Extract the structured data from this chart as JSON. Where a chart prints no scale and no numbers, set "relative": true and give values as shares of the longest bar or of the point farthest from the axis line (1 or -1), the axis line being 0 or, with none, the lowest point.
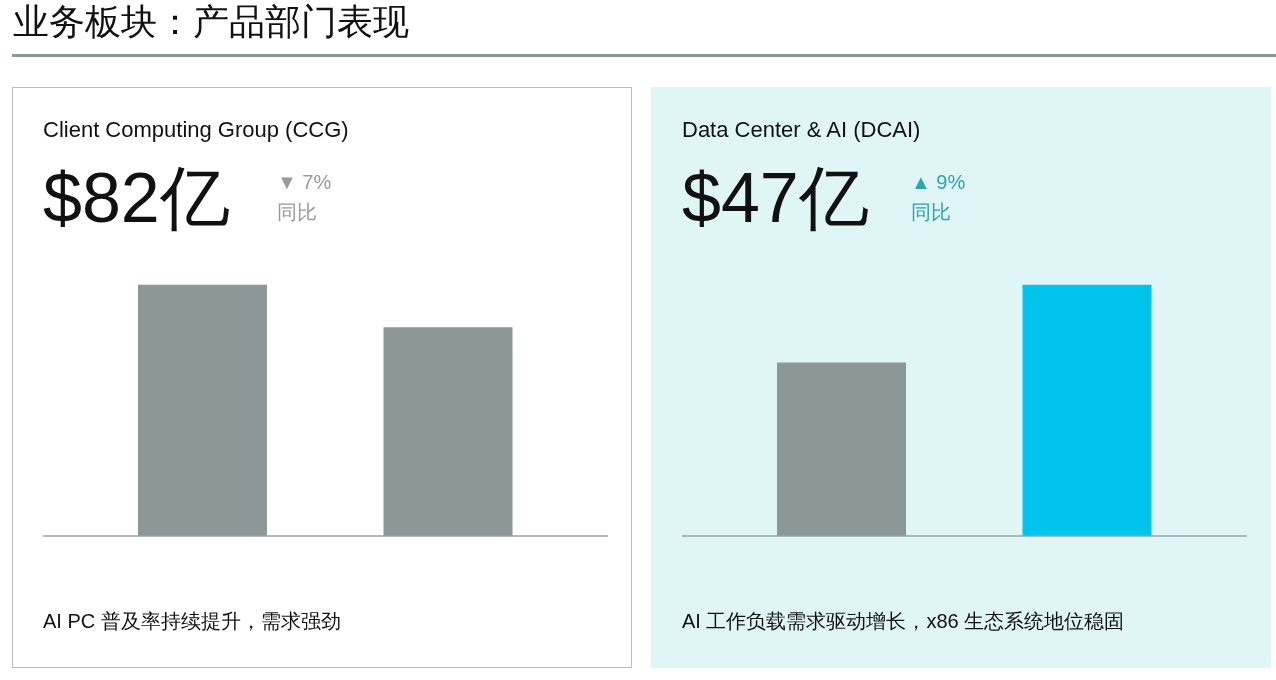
{
  "chart_data": [
    {
      "type": "other",
      "title": "业务板块：产品部门表现"
    },
    {
      "type": "bar",
      "title": "Client Computing Group (CCG)",
      "annotations": [
        "$82亿",
        "▼ 7%",
        "同比",
        "AI PC 普及率持续提升，需求强劲"
      ],
      "categories": [
        null,
        null
      ],
      "values": [
        1,
        0.83
      ],
      "colors": [
        "#8c9797",
        "#8c9797"
      ],
      "relative": true
    },
    {
      "type": "bar",
      "title": "Data Center & AI (DCAI)",
      "annotations": [
        "$47亿",
        "▲ 9%",
        "同比",
        "AI 工作负载需求驱动增长，x86 生态系统地位稳固"
      ],
      "categories": [
        null,
        null
      ],
      "values": [
        0.69,
        1
      ],
      "colors": [
        "#8c9797",
        "#00c4ec"
      ],
      "relative": true
    }
  ]
}
